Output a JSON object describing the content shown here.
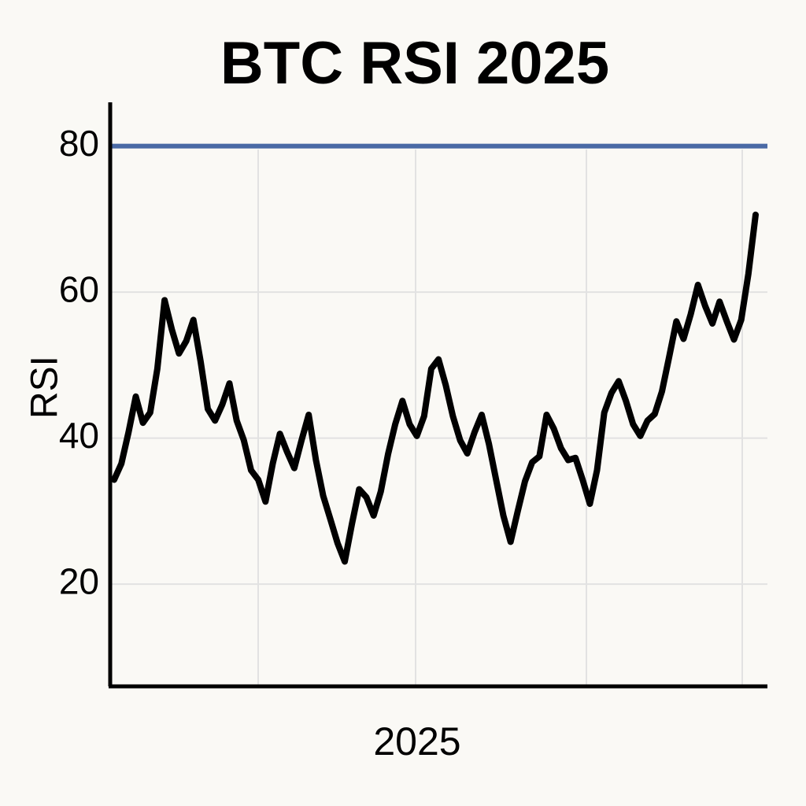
{
  "chart_data": {
    "type": "line",
    "title": "BTC RSI 2025",
    "xlabel": "2025",
    "ylabel": "RSI",
    "series": [
      {
        "color": "#000000",
        "values": [
          34.3,
          36.5,
          40.8,
          45.7,
          42.1,
          43.5,
          49.5,
          58.9,
          54.9,
          51.6,
          53.3,
          56.2,
          50.5,
          44.0,
          42.4,
          44.6,
          47.5,
          42.4,
          39.7,
          35.6,
          34.3,
          31.3,
          36.5,
          40.6,
          38.1,
          35.9,
          39.7,
          43.2,
          37.0,
          32.1,
          28.9,
          25.6,
          23.1,
          28.3,
          33.0,
          31.9,
          29.4,
          32.7,
          37.8,
          41.9,
          45.1,
          41.9,
          40.3,
          43.0,
          49.5,
          50.8,
          47.3,
          43.0,
          39.7,
          37.9,
          40.8,
          43.2,
          39.2,
          34.3,
          29.4,
          25.8,
          30.0,
          34.1,
          36.7,
          37.5,
          43.2,
          41.3,
          38.6,
          37.0,
          37.3,
          34.3,
          31.0,
          35.6,
          43.5,
          46.2,
          47.8,
          45.1,
          41.9,
          40.3,
          42.4,
          43.3,
          46.4,
          51.1,
          56.0,
          53.6,
          57.0,
          61.0,
          58.1,
          55.7,
          58.7,
          56.0,
          53.5,
          56.2,
          62.5,
          70.6
        ]
      }
    ],
    "reference_line": {
      "value": 80,
      "color": "#4a6aa5"
    },
    "ylim": [
      6,
      86
    ],
    "yticks": [
      20,
      40,
      60,
      80
    ],
    "grid": true
  }
}
